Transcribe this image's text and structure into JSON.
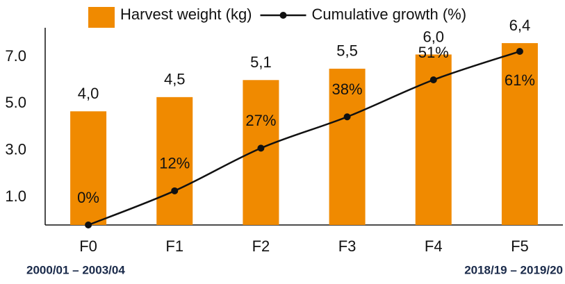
{
  "chart_data": {
    "type": "bar_line",
    "categories": [
      "F0",
      "F1",
      "F2",
      "F3",
      "F4",
      "F5"
    ],
    "series": [
      {
        "name": "Harvest weight (kg)",
        "type": "bar",
        "color": "#f08a00",
        "axis": "y2",
        "values": [
          4.0,
          4.5,
          5.1,
          5.5,
          6.0,
          6.4
        ],
        "value_labels": [
          "4,0",
          "4,5",
          "5,1",
          "5,5",
          "6,0",
          "6,4"
        ]
      },
      {
        "name": "Cumulative growth (%)",
        "type": "line",
        "color": "#111111",
        "axis": "y3",
        "values": [
          0,
          12,
          27,
          38,
          51,
          61
        ],
        "value_labels": [
          "0%",
          "12%",
          "27%",
          "38%",
          "51%",
          "61%"
        ]
      }
    ],
    "ylim": [
      -0.19,
      8.25
    ],
    "yticks": [
      {
        "value": 1,
        "label": "1.0"
      },
      {
        "value": 3,
        "label": "3.0"
      },
      {
        "value": 5,
        "label": "5.0"
      },
      {
        "value": 7,
        "label": "7.0"
      }
    ],
    "y2lim": [
      0,
      6.94
    ],
    "y3lim": [
      0,
      69.3
    ],
    "legend": "top",
    "annotations": [
      "2000/01 – 2003/04",
      "2018/19 – 2019/20"
    ]
  }
}
